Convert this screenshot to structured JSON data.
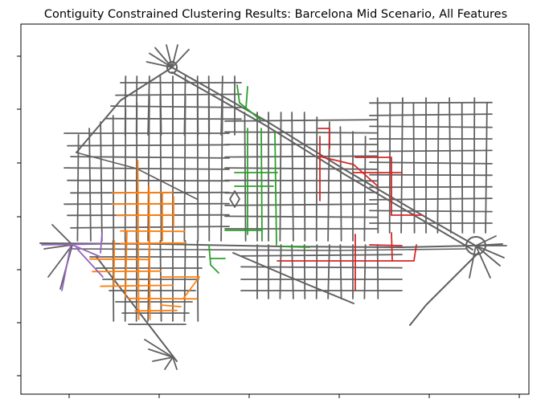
{
  "chart_data": {
    "type": "map",
    "title": "Contiguity Constrained Clustering Results: Barcelona Mid Scenario, All Features",
    "xlabel": "",
    "ylabel": "",
    "x_tick_labels": [
      "",
      "",
      "",
      "",
      "",
      ""
    ],
    "y_tick_labels": [
      "",
      "",
      "",
      "",
      "",
      "",
      ""
    ],
    "grid": false,
    "legend": "none",
    "colors": {
      "unclustered": "#606060",
      "cluster_orange": "#ff7f0e",
      "cluster_green": "#2ca02c",
      "cluster_red": "#d62728",
      "cluster_purple": "#9467bd"
    },
    "clusters": [
      {
        "name": "unclustered",
        "color": "#606060"
      },
      {
        "name": "cluster_orange",
        "color": "#ff7f0e"
      },
      {
        "name": "cluster_green",
        "color": "#2ca02c"
      },
      {
        "name": "cluster_red",
        "color": "#d62728"
      },
      {
        "name": "cluster_purple",
        "color": "#9467bd"
      }
    ]
  }
}
